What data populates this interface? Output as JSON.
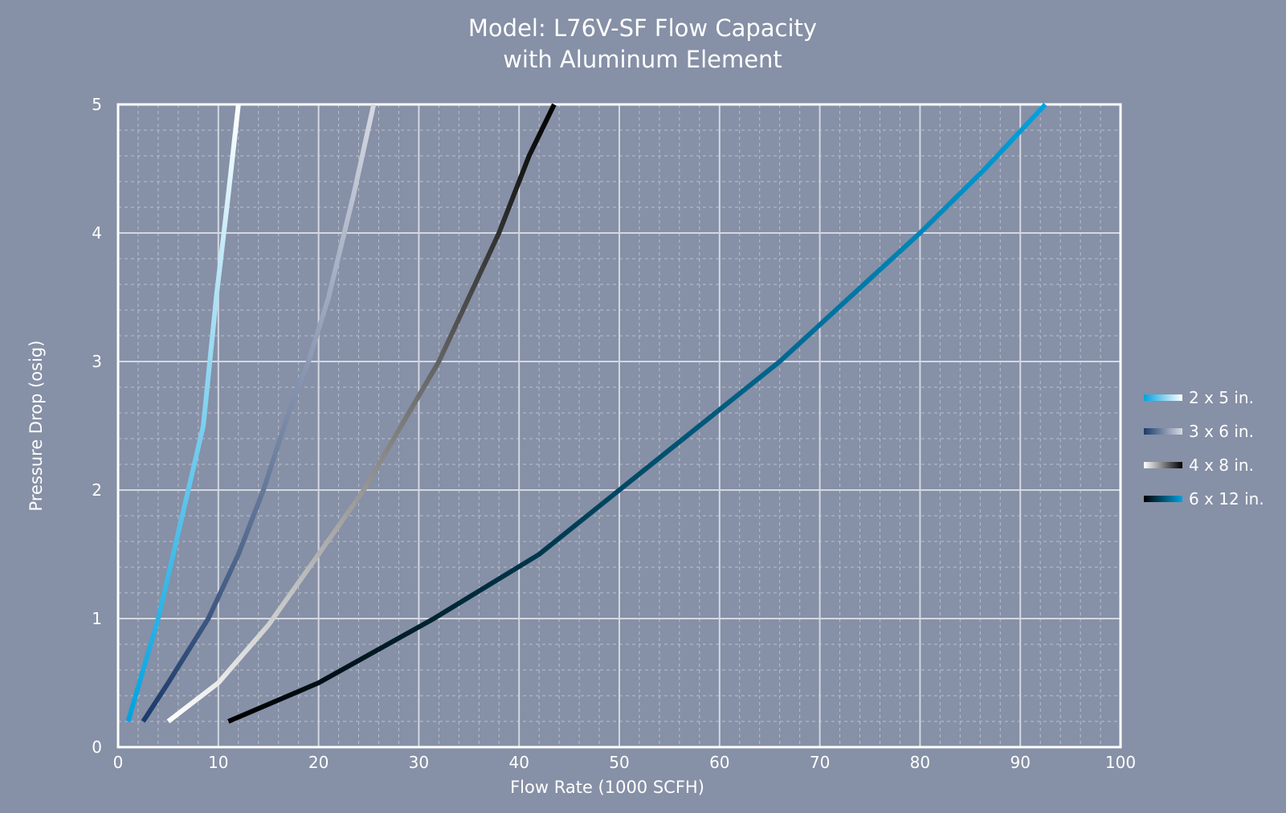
{
  "chart_data": {
    "type": "line",
    "title": "Model: L76V-SF Flow Capacity",
    "subtitle": "with Aluminum Element",
    "xlabel": "Flow Rate (1000 SCFH)",
    "ylabel": "Pressure Drop (osig)",
    "xlim": [
      0,
      100
    ],
    "ylim": [
      0,
      5
    ],
    "x_ticks": [
      "0",
      "10",
      "20",
      "30",
      "40",
      "50",
      "60",
      "70",
      "80",
      "90",
      "100"
    ],
    "y_ticks": [
      "0",
      "1",
      "2",
      "3",
      "4",
      "5"
    ],
    "grid": true,
    "minor_grid": true,
    "legend_position": "right",
    "background": "#8690a6",
    "series": [
      {
        "name": "2 x 5 in.",
        "gradient": [
          "#00a2e0",
          "#ffffff"
        ],
        "x": [
          1.0,
          2.5,
          4.0,
          5.5,
          7.0,
          8.5,
          9.8,
          11.0,
          12.0
        ],
        "y": [
          0.2,
          0.6,
          1.0,
          1.5,
          2.0,
          2.5,
          3.5,
          4.3,
          5.0
        ]
      },
      {
        "name": "3 x 6 in.",
        "gradient": [
          "#1b3a6b",
          "#d7d9e3"
        ],
        "x": [
          2.5,
          5.0,
          9.0,
          12.0,
          14.5,
          17.0,
          19.0,
          21.0,
          23.5,
          25.5
        ],
        "y": [
          0.2,
          0.5,
          1.0,
          1.5,
          2.0,
          2.6,
          3.0,
          3.5,
          4.3,
          5.0
        ]
      },
      {
        "name": "4 x 8 in.",
        "gradient": [
          "#ffffff",
          "#000000"
        ],
        "x": [
          5.0,
          10.0,
          15.0,
          20.0,
          24.5,
          29.0,
          32.0,
          35.0,
          38.0,
          41.0,
          43.5
        ],
        "y": [
          0.2,
          0.5,
          0.95,
          1.5,
          2.0,
          2.6,
          3.0,
          3.5,
          4.0,
          4.6,
          5.0
        ]
      },
      {
        "name": "6 x 12 in.",
        "gradient": [
          "#000000",
          "#00a2e0"
        ],
        "x": [
          11.0,
          20.0,
          31.5,
          42.0,
          50.0,
          58.0,
          66.0,
          73.0,
          80.0,
          86.5,
          92.5
        ],
        "y": [
          0.2,
          0.5,
          1.0,
          1.5,
          2.0,
          2.5,
          3.0,
          3.5,
          4.0,
          4.5,
          5.0
        ]
      }
    ]
  }
}
